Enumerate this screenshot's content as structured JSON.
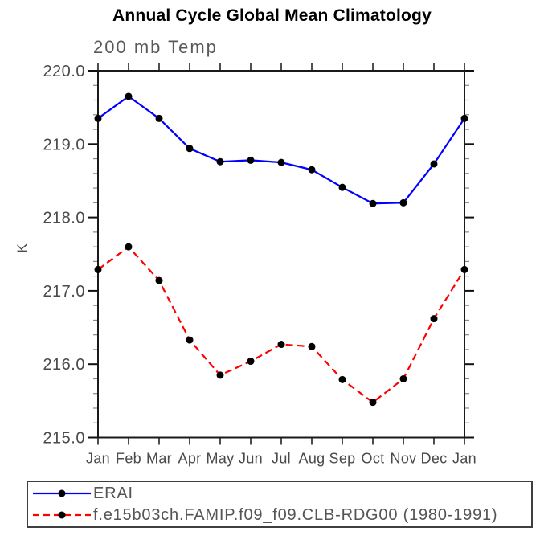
{
  "page": {
    "background": "#ffffff"
  },
  "chart_data": {
    "type": "line",
    "title": "Annual Cycle Global Mean Climatology",
    "subtitle": "200 mb Temp",
    "ylabel": "K",
    "xlabel": "",
    "categories": [
      "Jan",
      "Feb",
      "Mar",
      "Apr",
      "May",
      "Jun",
      "Jul",
      "Aug",
      "Sep",
      "Oct",
      "Nov",
      "Dec",
      "Jan"
    ],
    "ylim": [
      215.0,
      220.0
    ],
    "y_major_step": 1.0,
    "y_minor_step": 0.2,
    "y_tick_labels": [
      "220.0",
      "219.0",
      "218.0",
      "217.0",
      "216.0",
      "215.0"
    ],
    "grid": false,
    "legend_position": "bottom-box",
    "marker": "filled-circle",
    "marker_color": "#000000",
    "axis_color": "#1a1a1a",
    "label_color": "#4a4a4a",
    "series": [
      {
        "name": "ERAI",
        "color": "#0000ff",
        "style": "solid",
        "values": [
          219.35,
          219.65,
          219.35,
          218.94,
          218.76,
          218.78,
          218.75,
          218.65,
          218.41,
          218.19,
          218.2,
          218.73,
          219.35
        ]
      },
      {
        "name": "f.e15b03ch.FAMIP.f09_f09.CLB-RDG00 (1980-1991)",
        "color": "#ff0000",
        "style": "dashed",
        "values": [
          217.29,
          217.6,
          217.14,
          216.33,
          215.85,
          216.04,
          216.27,
          216.24,
          215.79,
          215.48,
          215.8,
          216.62,
          217.29
        ]
      }
    ]
  }
}
